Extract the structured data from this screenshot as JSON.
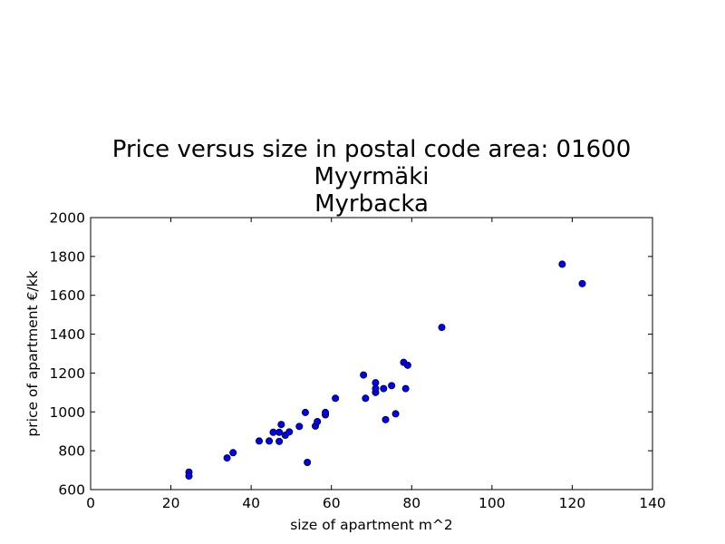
{
  "chart_data": {
    "type": "scatter",
    "title_lines": [
      "Price versus size in postal code area: 01600",
      "Myyrmäki",
      "Myrbacka"
    ],
    "xlabel": "size of apartment m^2",
    "ylabel": "price of apartment €/kk",
    "xlim": [
      0,
      140
    ],
    "ylim": [
      600,
      2000
    ],
    "xticks": [
      0,
      20,
      40,
      60,
      80,
      100,
      120,
      140
    ],
    "yticks": [
      600,
      800,
      1000,
      1200,
      1400,
      1600,
      1800,
      2000
    ],
    "grid": false,
    "marker_color": "#0000ff",
    "points": [
      {
        "x": 24.5,
        "y": 690
      },
      {
        "x": 24.5,
        "y": 670
      },
      {
        "x": 34,
        "y": 763
      },
      {
        "x": 35.5,
        "y": 790
      },
      {
        "x": 42,
        "y": 850
      },
      {
        "x": 44.5,
        "y": 850
      },
      {
        "x": 45.5,
        "y": 895
      },
      {
        "x": 47,
        "y": 848
      },
      {
        "x": 47,
        "y": 895
      },
      {
        "x": 47.5,
        "y": 935
      },
      {
        "x": 48.5,
        "y": 880
      },
      {
        "x": 49.5,
        "y": 897
      },
      {
        "x": 52,
        "y": 925
      },
      {
        "x": 53.5,
        "y": 997
      },
      {
        "x": 54,
        "y": 740
      },
      {
        "x": 56,
        "y": 927
      },
      {
        "x": 56.5,
        "y": 950
      },
      {
        "x": 58.5,
        "y": 985
      },
      {
        "x": 58.5,
        "y": 997
      },
      {
        "x": 61,
        "y": 1070
      },
      {
        "x": 68,
        "y": 1190
      },
      {
        "x": 68.5,
        "y": 1070
      },
      {
        "x": 71,
        "y": 1100
      },
      {
        "x": 71,
        "y": 1120
      },
      {
        "x": 71,
        "y": 1150
      },
      {
        "x": 73,
        "y": 1120
      },
      {
        "x": 73.5,
        "y": 960
      },
      {
        "x": 75,
        "y": 1135
      },
      {
        "x": 76,
        "y": 990
      },
      {
        "x": 78,
        "y": 1255
      },
      {
        "x": 78.5,
        "y": 1120
      },
      {
        "x": 79,
        "y": 1240
      },
      {
        "x": 87.5,
        "y": 1435
      },
      {
        "x": 117.5,
        "y": 1760
      },
      {
        "x": 122.5,
        "y": 1660
      }
    ]
  }
}
